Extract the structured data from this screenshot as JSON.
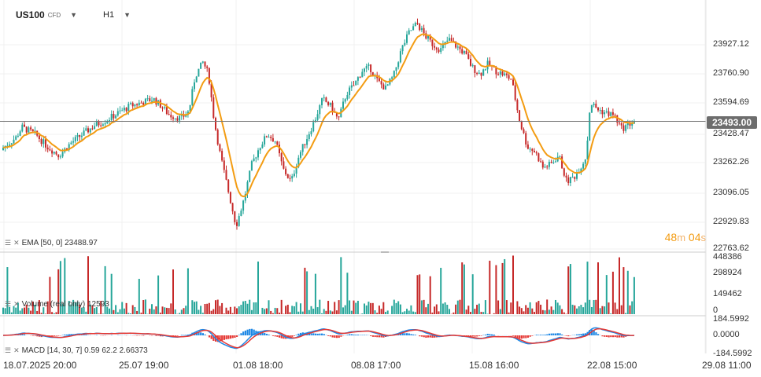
{
  "header": {
    "symbol": "US100",
    "symbol_tag": "CFD",
    "timeframe": "H1"
  },
  "indicators": {
    "ema_label": "EMA [50, 0]",
    "ema_value": "23488.97",
    "volume_label": "Volume (real only)",
    "volume_value": "12593",
    "macd_label": "MACD [14, 30, 7] 0.59 62.2",
    "macd_value": "2.66373"
  },
  "timer": {
    "minutes": "48",
    "minutes_unit": "m",
    "seconds": "04",
    "seconds_unit": "s"
  },
  "current_price": "23493.00",
  "colors": {
    "up": "#26a69a",
    "down": "#c62828",
    "ema": "#f39c12",
    "macd_line": "#1e88e5",
    "signal_line": "#e53935",
    "grid": "#f0f0f0",
    "price_line": "#777777"
  },
  "chart_data": {
    "type": "candlestick",
    "symbol": "US100",
    "timeframe": "H1",
    "price_axis": {
      "ticks": [
        "23927.12",
        "23760.90",
        "23594.69",
        "23428.47",
        "23262.26",
        "23096.05",
        "22929.83",
        "22763.62"
      ],
      "range": [
        22763.62,
        24093.3
      ]
    },
    "volume_axis": {
      "ticks": [
        "448386",
        "298924",
        "149462",
        "0"
      ]
    },
    "macd_axis": {
      "ticks": [
        "184.5992",
        "0.0000",
        "-184.5992"
      ]
    },
    "x_ticks": [
      "18.07.2025  20:00",
      "25.07  19:00",
      "01.08  18:00",
      "08.08  17:00",
      "15.08  16:00",
      "22.08  15:00",
      "29.08  11:00"
    ],
    "close_profile": [
      [
        0,
        23330
      ],
      [
        20,
        23400
      ],
      [
        28,
        23460
      ],
      [
        45,
        23420
      ],
      [
        60,
        23350
      ],
      [
        75,
        23300
      ],
      [
        90,
        23370
      ],
      [
        105,
        23420
      ],
      [
        120,
        23470
      ],
      [
        135,
        23500
      ],
      [
        150,
        23540
      ],
      [
        165,
        23580
      ],
      [
        180,
        23600
      ],
      [
        195,
        23620
      ],
      [
        205,
        23580
      ],
      [
        215,
        23530
      ],
      [
        230,
        23510
      ],
      [
        240,
        23550
      ],
      [
        248,
        23750
      ],
      [
        258,
        23830
      ],
      [
        265,
        23760
      ],
      [
        272,
        23500
      ],
      [
        280,
        23300
      ],
      [
        290,
        23100
      ],
      [
        300,
        22900
      ],
      [
        310,
        23050
      ],
      [
        320,
        23250
      ],
      [
        330,
        23350
      ],
      [
        340,
        23420
      ],
      [
        350,
        23380
      ],
      [
        360,
        23220
      ],
      [
        370,
        23150
      ],
      [
        380,
        23300
      ],
      [
        390,
        23400
      ],
      [
        400,
        23500
      ],
      [
        410,
        23620
      ],
      [
        420,
        23580
      ],
      [
        430,
        23500
      ],
      [
        440,
        23650
      ],
      [
        450,
        23700
      ],
      [
        460,
        23780
      ],
      [
        470,
        23800
      ],
      [
        480,
        23720
      ],
      [
        490,
        23680
      ],
      [
        500,
        23750
      ],
      [
        510,
        23900
      ],
      [
        520,
        24000
      ],
      [
        530,
        24050
      ],
      [
        540,
        23980
      ],
      [
        550,
        23930
      ],
      [
        560,
        23900
      ],
      [
        570,
        23960
      ],
      [
        580,
        23920
      ],
      [
        590,
        23880
      ],
      [
        600,
        23800
      ],
      [
        610,
        23760
      ],
      [
        620,
        23820
      ],
      [
        630,
        23780
      ],
      [
        640,
        23760
      ],
      [
        650,
        23730
      ],
      [
        660,
        23500
      ],
      [
        670,
        23350
      ],
      [
        680,
        23320
      ],
      [
        690,
        23230
      ],
      [
        700,
        23250
      ],
      [
        710,
        23300
      ],
      [
        720,
        23150
      ],
      [
        730,
        23180
      ],
      [
        740,
        23250
      ],
      [
        745,
        23300
      ],
      [
        750,
        23600
      ],
      [
        760,
        23560
      ],
      [
        770,
        23540
      ],
      [
        780,
        23530
      ],
      [
        790,
        23450
      ],
      [
        800,
        23480
      ],
      [
        808,
        23495
      ]
    ],
    "ema_period": 50,
    "last_ema": 23488.97
  }
}
